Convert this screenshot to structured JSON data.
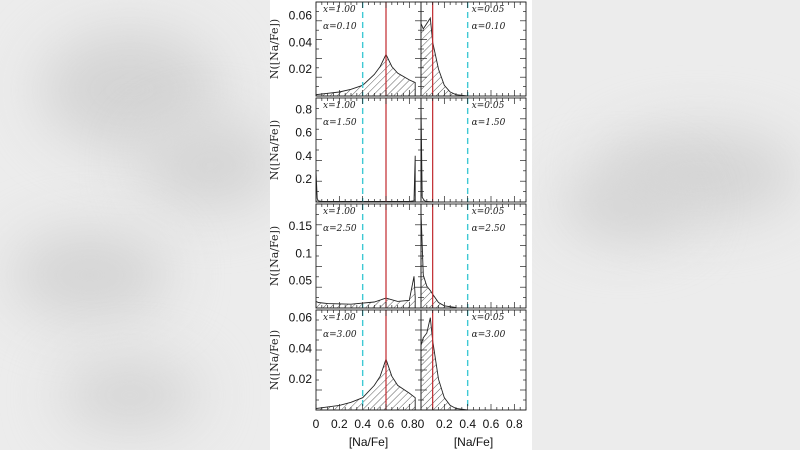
{
  "chart_data": {
    "type": "area",
    "title": "",
    "layout": {
      "rows": 4,
      "cols": 2,
      "shared_x": true
    },
    "xlabel": "[Na/Fe]",
    "ylabel": "N([Na/Fe])",
    "xlim": [
      0,
      0.9
    ],
    "xticks": [
      "0",
      "0.2",
      "0.4",
      "0.6",
      "0.8"
    ],
    "reference_lines": {
      "dashed_cyan": {
        "x": 0.4,
        "color": "#3fc9d4",
        "style": "dashed"
      },
      "solid_red_left": {
        "x": 0.6,
        "color": "#c0282d",
        "style": "solid"
      },
      "solid_red_right": {
        "x": 0.1,
        "color": "#c0282d",
        "style": "solid"
      }
    },
    "rows": [
      {
        "alpha": "α=0.10",
        "ylim": [
          0,
          0.07
        ],
        "yticks": [
          "0.02",
          "0.04",
          "0.06"
        ],
        "panels": [
          {
            "x_label": "x=1.00",
            "alpha_label": "α=0.10",
            "x": [
              0.0,
              0.1,
              0.2,
              0.3,
              0.4,
              0.5,
              0.55,
              0.6,
              0.65,
              0.7,
              0.8,
              0.85
            ],
            "y": [
              0.001,
              0.002,
              0.003,
              0.005,
              0.008,
              0.016,
              0.022,
              0.031,
              0.022,
              0.017,
              0.012,
              0.01
            ]
          },
          {
            "x_label": "x=0.05",
            "alpha_label": "α=0.10",
            "x": [
              0.0,
              0.02,
              0.05,
              0.08,
              0.1,
              0.15,
              0.2,
              0.25,
              0.3,
              0.4
            ],
            "y": [
              0.054,
              0.05,
              0.054,
              0.058,
              0.04,
              0.02,
              0.008,
              0.003,
              0.001,
              0.0
            ]
          }
        ]
      },
      {
        "alpha": "α=1.50",
        "ylim": [
          0,
          0.9
        ],
        "yticks": [
          "0.2",
          "0.4",
          "0.6",
          "0.8"
        ],
        "panels": [
          {
            "x_label": "x=1.00",
            "alpha_label": "α=1.50",
            "x": [
              0.0,
              0.01,
              0.02,
              0.05,
              0.3,
              0.6,
              0.8,
              0.84,
              0.85
            ],
            "y": [
              0.27,
              0.03,
              0.01,
              0.005,
              0.004,
              0.004,
              0.005,
              0.01,
              0.4
            ]
          },
          {
            "x_label": "x=0.05",
            "alpha_label": "α=1.50",
            "x": [
              0.0,
              0.01,
              0.03,
              0.05,
              0.1,
              0.2
            ],
            "y": [
              0.84,
              0.04,
              0.01,
              0.004,
              0.002,
              0.001
            ]
          }
        ]
      },
      {
        "alpha": "α=2.50",
        "ylim": [
          0,
          0.19
        ],
        "yticks": [
          "0.05",
          "0.1",
          "0.15"
        ],
        "panels": [
          {
            "x_label": "x=1.00",
            "alpha_label": "α=2.50",
            "x": [
              0.0,
              0.02,
              0.1,
              0.3,
              0.5,
              0.6,
              0.7,
              0.8,
              0.84,
              0.85
            ],
            "y": [
              0.012,
              0.01,
              0.008,
              0.007,
              0.011,
              0.018,
              0.012,
              0.014,
              0.058,
              0.02
            ]
          },
          {
            "x_label": "x=0.05",
            "alpha_label": "α=2.50",
            "x": [
              0.0,
              0.02,
              0.05,
              0.08,
              0.1,
              0.15,
              0.2,
              0.3
            ],
            "y": [
              0.175,
              0.06,
              0.04,
              0.032,
              0.025,
              0.01,
              0.004,
              0.001
            ]
          }
        ]
      },
      {
        "alpha": "α=3.00",
        "ylim": [
          0,
          0.065
        ],
        "yticks": [
          "0.02",
          "0.04",
          "0.06"
        ],
        "panels": [
          {
            "x_label": "x=1.00",
            "alpha_label": "α=3.00",
            "x": [
              0.0,
              0.1,
              0.2,
              0.3,
              0.4,
              0.5,
              0.55,
              0.6,
              0.65,
              0.7,
              0.8,
              0.85
            ],
            "y": [
              0.001,
              0.002,
              0.003,
              0.005,
              0.008,
              0.016,
              0.022,
              0.033,
              0.022,
              0.016,
              0.011,
              0.008
            ]
          },
          {
            "x_label": "x=0.05",
            "alpha_label": "α=3.00",
            "x": [
              0.0,
              0.02,
              0.05,
              0.08,
              0.1,
              0.15,
              0.2,
              0.25,
              0.3,
              0.4
            ],
            "y": [
              0.042,
              0.047,
              0.05,
              0.06,
              0.045,
              0.02,
              0.008,
              0.003,
              0.001,
              0.0
            ]
          }
        ]
      }
    ]
  }
}
